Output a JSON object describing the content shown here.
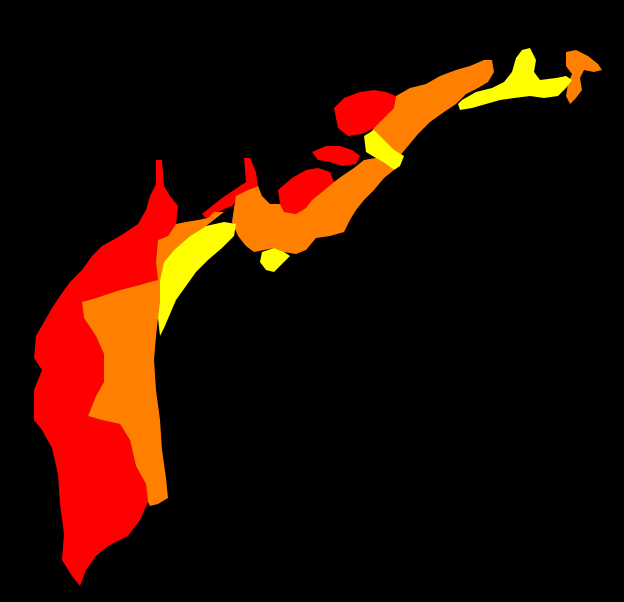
{
  "map": {
    "background_color": "#000000",
    "zones": [
      {
        "id": "zone-red",
        "color": "#ff0000"
      },
      {
        "id": "zone-orange",
        "color": "#ff8000"
      },
      {
        "id": "zone-yellow",
        "color": "#ffff00"
      }
    ]
  }
}
